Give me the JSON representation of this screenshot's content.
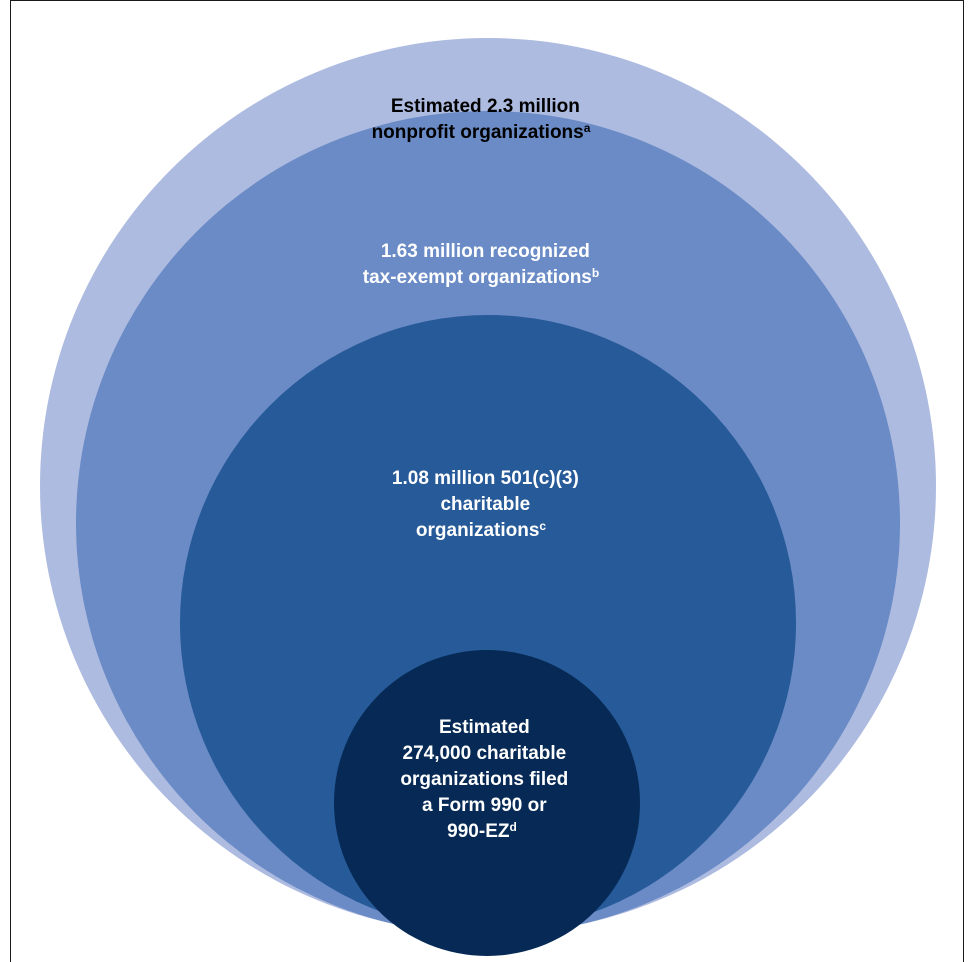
{
  "diagram": {
    "colors": {
      "outer": "#aebbe0",
      "second": "#6a8bc6",
      "third": "#275a98",
      "inner": "#062a55",
      "outer_text": "#000000",
      "inner_text": "#ffffff"
    },
    "circles": [
      {
        "lines": [
          "Estimated 2.3 million",
          "nonprofit organizations"
        ],
        "sup": "a"
      },
      {
        "lines": [
          "1.63 million recognized",
          "tax-exempt organizations"
        ],
        "sup": "b"
      },
      {
        "lines": [
          "1.08 million 501(c)(3)",
          "charitable",
          "organizations"
        ],
        "sup": "c"
      },
      {
        "lines": [
          "Estimated",
          "274,000 charitable",
          "organizations filed",
          "a Form 990 or",
          "990-EZ"
        ],
        "sup": "d"
      }
    ]
  }
}
